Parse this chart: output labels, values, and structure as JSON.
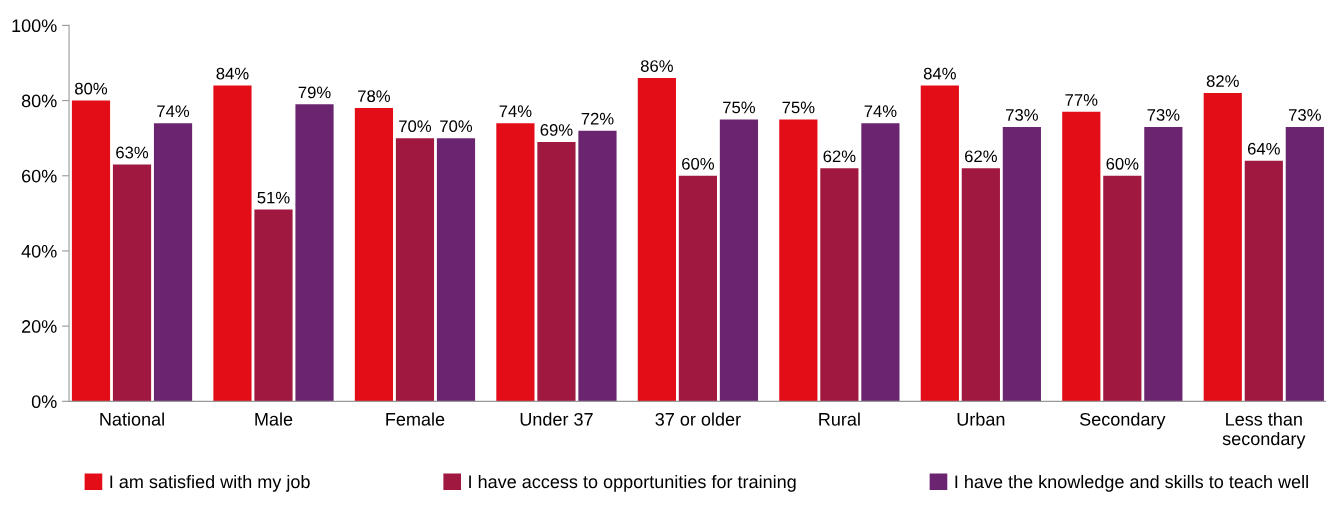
{
  "chart_data": {
    "type": "bar",
    "categories": [
      "National",
      "Male",
      "Female",
      "Under 37",
      "37 or older",
      "Rural",
      "Urban",
      "Secondary",
      "Less than\nsecondary"
    ],
    "series": [
      {
        "name": "I am satisfied with my job",
        "color": "#e30d18",
        "values": [
          80,
          84,
          78,
          74,
          86,
          75,
          84,
          77,
          82
        ],
        "value_labels": [
          "80%",
          "84%",
          "78%",
          "74%",
          "86%",
          "75%",
          "84%",
          "77%",
          "82%"
        ]
      },
      {
        "name": "I have access to opportunities for training",
        "color": "#a0183f",
        "values": [
          63,
          51,
          70,
          69,
          60,
          62,
          62,
          60,
          64
        ],
        "value_labels": [
          "63%",
          "51%",
          "70%",
          "69%",
          "60%",
          "62%",
          "62%",
          "60%",
          "64%"
        ]
      },
      {
        "name": "I have the knowledge and skills to teach well",
        "color": "#6a2470",
        "values": [
          74,
          79,
          70,
          72,
          75,
          74,
          73,
          73,
          73
        ],
        "value_labels": [
          "74%",
          "79%",
          "70%",
          "72%",
          "75%",
          "74%",
          "73%",
          "73%",
          "73%"
        ]
      }
    ],
    "ylim": [
      0,
      100
    ],
    "yticks": [
      {
        "value": 0,
        "label": "0%"
      },
      {
        "value": 20,
        "label": "20%"
      },
      {
        "value": 40,
        "label": "40%"
      },
      {
        "value": 60,
        "label": "60%"
      },
      {
        "value": 80,
        "label": "80%"
      },
      {
        "value": 100,
        "label": "100%"
      }
    ],
    "grid": false,
    "legend": "bottom"
  }
}
